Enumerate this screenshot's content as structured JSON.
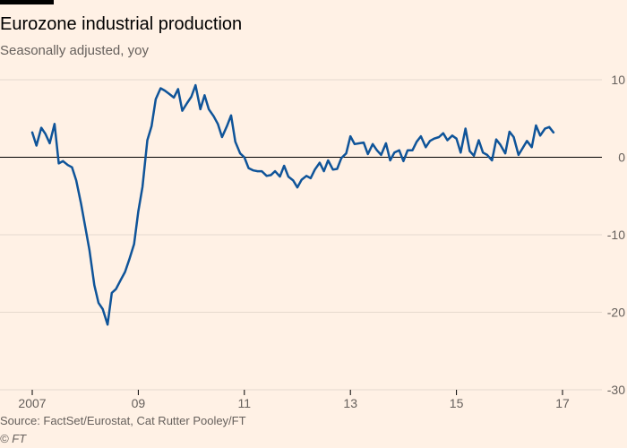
{
  "header": {
    "title": "Eurozone industrial production",
    "subtitle": "Seasonally adjusted, yoy"
  },
  "footer": {
    "source": "Source: FactSet/Eurostat, Cat Rutter Pooley/FT",
    "credit": "© FT"
  },
  "colors": {
    "line": "#0F5499",
    "background": "#FFF1E5",
    "gridline": "#E6D9CE",
    "zero_line": "#000000",
    "text": "#66605C"
  },
  "chart_data": {
    "type": "line",
    "title": "Eurozone industrial production",
    "subtitle": "Seasonally adjusted, yoy",
    "xlabel": "",
    "ylabel": "",
    "x_range": [
      2007.0,
      2017.9
    ],
    "ylim": [
      -30,
      10
    ],
    "y_ticks": [
      10,
      0,
      -10,
      -20,
      -30
    ],
    "x_ticks": [
      {
        "value": 2007,
        "label": "2007"
      },
      {
        "value": 2009,
        "label": "09"
      },
      {
        "value": 2011,
        "label": "11"
      },
      {
        "value": 2013,
        "label": "13"
      },
      {
        "value": 2015,
        "label": "15"
      },
      {
        "value": 2017,
        "label": "17"
      }
    ],
    "y_axis_side": "right",
    "grid": true,
    "series": [
      {
        "points": [
          [
            2007.0,
            3.2
          ],
          [
            2007.08,
            1.5
          ],
          [
            2007.17,
            3.8
          ],
          [
            2007.25,
            3.0
          ],
          [
            2007.33,
            1.8
          ],
          [
            2007.42,
            4.3
          ],
          [
            2007.5,
            -0.8
          ],
          [
            2007.58,
            -0.5
          ],
          [
            2007.67,
            -1.0
          ],
          [
            2007.75,
            -1.3
          ],
          [
            2007.83,
            -3.0
          ],
          [
            2007.92,
            -6.0
          ],
          [
            2008.0,
            -9.0
          ],
          [
            2008.08,
            -12.0
          ],
          [
            2008.17,
            -16.5
          ],
          [
            2008.25,
            -18.8
          ],
          [
            2008.33,
            -19.6
          ],
          [
            2008.42,
            -21.6
          ],
          [
            2008.5,
            -17.5
          ],
          [
            2008.58,
            -17.0
          ],
          [
            2008.67,
            -15.8
          ],
          [
            2008.75,
            -14.8
          ],
          [
            2008.83,
            -13.2
          ],
          [
            2008.92,
            -11.2
          ],
          [
            2009.0,
            -7.0
          ],
          [
            2009.08,
            -3.8
          ],
          [
            2009.17,
            2.2
          ],
          [
            2009.25,
            4.0
          ],
          [
            2009.33,
            7.5
          ],
          [
            2009.42,
            8.9
          ],
          [
            2009.5,
            8.6
          ],
          [
            2009.58,
            8.2
          ],
          [
            2009.67,
            7.7
          ],
          [
            2009.75,
            8.8
          ],
          [
            2009.83,
            6.0
          ],
          [
            2009.92,
            7.0
          ],
          [
            2010.0,
            7.8
          ],
          [
            2010.08,
            9.3
          ],
          [
            2010.17,
            6.2
          ],
          [
            2010.25,
            8.0
          ],
          [
            2010.33,
            6.2
          ],
          [
            2010.42,
            5.3
          ],
          [
            2010.5,
            4.3
          ],
          [
            2010.58,
            2.6
          ],
          [
            2010.67,
            4.0
          ],
          [
            2010.75,
            5.4
          ],
          [
            2010.83,
            2.0
          ],
          [
            2010.92,
            0.5
          ],
          [
            2011.0,
            0.0
          ],
          [
            2011.08,
            -1.4
          ],
          [
            2011.17,
            -1.7
          ],
          [
            2011.25,
            -1.8
          ],
          [
            2011.33,
            -1.8
          ],
          [
            2011.42,
            -2.4
          ],
          [
            2011.5,
            -2.3
          ],
          [
            2011.58,
            -1.8
          ],
          [
            2011.67,
            -2.5
          ],
          [
            2011.75,
            -1.1
          ],
          [
            2011.83,
            -2.5
          ],
          [
            2011.92,
            -3.0
          ],
          [
            2012.0,
            -3.9
          ],
          [
            2012.08,
            -2.9
          ],
          [
            2012.17,
            -2.4
          ],
          [
            2012.25,
            -2.7
          ],
          [
            2012.33,
            -1.6
          ],
          [
            2012.42,
            -0.7
          ],
          [
            2012.5,
            -1.8
          ],
          [
            2012.58,
            -0.4
          ],
          [
            2012.67,
            -1.6
          ],
          [
            2012.75,
            -1.5
          ],
          [
            2012.83,
            -0.1
          ],
          [
            2012.92,
            0.5
          ],
          [
            2013.0,
            2.7
          ],
          [
            2013.08,
            1.7
          ],
          [
            2013.17,
            1.8
          ],
          [
            2013.25,
            1.9
          ],
          [
            2013.33,
            0.4
          ],
          [
            2013.42,
            1.7
          ],
          [
            2013.5,
            0.9
          ],
          [
            2013.58,
            0.3
          ],
          [
            2013.67,
            1.8
          ],
          [
            2013.75,
            -0.4
          ],
          [
            2013.83,
            0.6
          ],
          [
            2013.92,
            0.9
          ],
          [
            2014.0,
            -0.5
          ],
          [
            2014.08,
            0.9
          ],
          [
            2014.17,
            0.9
          ],
          [
            2014.25,
            2.0
          ],
          [
            2014.33,
            2.7
          ],
          [
            2014.42,
            1.3
          ],
          [
            2014.5,
            2.1
          ],
          [
            2014.58,
            2.4
          ],
          [
            2014.67,
            2.6
          ],
          [
            2014.75,
            3.1
          ],
          [
            2014.83,
            2.2
          ],
          [
            2014.92,
            2.8
          ],
          [
            2015.0,
            2.4
          ],
          [
            2015.08,
            0.6
          ],
          [
            2015.17,
            3.7
          ],
          [
            2015.25,
            0.8
          ],
          [
            2015.33,
            0.2
          ],
          [
            2015.42,
            2.2
          ],
          [
            2015.5,
            0.6
          ],
          [
            2015.58,
            0.3
          ],
          [
            2015.67,
            -0.4
          ],
          [
            2015.75,
            2.3
          ],
          [
            2015.83,
            1.6
          ],
          [
            2015.92,
            0.5
          ],
          [
            2016.0,
            3.3
          ],
          [
            2016.08,
            2.6
          ],
          [
            2016.17,
            0.3
          ],
          [
            2016.25,
            1.2
          ],
          [
            2016.33,
            2.1
          ],
          [
            2016.42,
            1.3
          ],
          [
            2016.5,
            4.1
          ],
          [
            2016.58,
            2.8
          ],
          [
            2016.67,
            3.7
          ],
          [
            2016.75,
            3.9
          ],
          [
            2016.83,
            3.2
          ]
        ]
      }
    ]
  }
}
